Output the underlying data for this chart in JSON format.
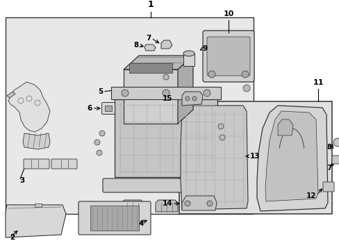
{
  "fig_width": 4.89,
  "fig_height": 3.6,
  "dpi": 100,
  "bg_outer": "#ffffff",
  "bg_main": "#e8e8e8",
  "bg_sub": "#e0e0e0",
  "lc": "#333333",
  "lc_thin": "#666666",
  "gray_fill": "#c8c8c8",
  "dark_fill": "#999999",
  "light_fill": "#d8d8d8",
  "white_fill": "#f5f5f5"
}
